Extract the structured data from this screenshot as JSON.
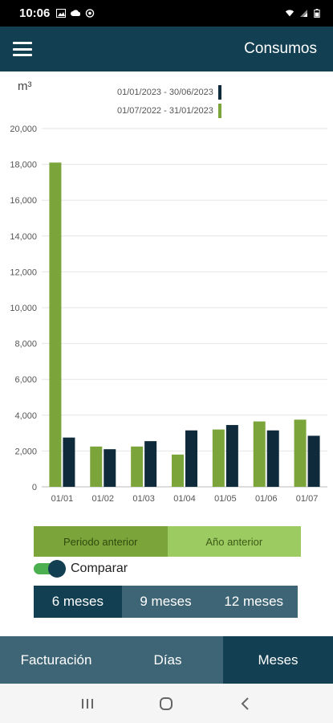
{
  "status_bar": {
    "time": "10:06",
    "left_icons": [
      "image-icon",
      "cloud-icon",
      "settings-icon"
    ],
    "right_icons": [
      "wifi-icon",
      "signal-icon",
      "battery-icon"
    ]
  },
  "app_bar": {
    "title": "Consumos",
    "menu_icon": "menu-icon"
  },
  "chart": {
    "unit": "m³",
    "legend": [
      {
        "label": "01/01/2023 - 30/06/2023",
        "color": "#0f2a3a"
      },
      {
        "label": "01/07/2022 - 31/01/2023",
        "color": "#7ba53b"
      }
    ]
  },
  "chart_data": {
    "type": "bar",
    "categories": [
      "01/01",
      "01/02",
      "01/03",
      "01/04",
      "01/05",
      "01/06",
      "01/07"
    ],
    "series": [
      {
        "name": "01/07/2022 - 31/01/2023",
        "color": "#7ba53b",
        "values": [
          18100,
          2250,
          2250,
          1800,
          3200,
          3650,
          3750
        ]
      },
      {
        "name": "01/01/2023 - 30/06/2023",
        "color": "#0f2a3a",
        "values": [
          2750,
          2100,
          2550,
          3150,
          3450,
          3150,
          2850
        ]
      }
    ],
    "yticks": [
      "0",
      "2,000",
      "4,000",
      "6,000",
      "8,000",
      "10,000",
      "12,000",
      "14,000",
      "16,000",
      "18,000",
      "20,000"
    ],
    "ylim": [
      0,
      20000
    ],
    "grid": true,
    "legend_position": "top"
  },
  "compare_mode": {
    "options": [
      {
        "label": "Periodo anterior",
        "active": true
      },
      {
        "label": "Año anterior",
        "active": false
      }
    ]
  },
  "compare_toggle": {
    "label": "Comparar",
    "on": true
  },
  "period_selector": {
    "options": [
      {
        "label": "6 meses",
        "active": true
      },
      {
        "label": "9 meses",
        "active": false
      },
      {
        "label": "12 meses",
        "active": false
      }
    ]
  },
  "bottom_nav": {
    "tabs": [
      {
        "label": "Facturación",
        "active": false
      },
      {
        "label": "Días",
        "active": false
      },
      {
        "label": "Meses",
        "active": true
      }
    ]
  },
  "system_nav": {
    "buttons": [
      "recent-apps-icon",
      "home-icon",
      "back-icon"
    ]
  }
}
